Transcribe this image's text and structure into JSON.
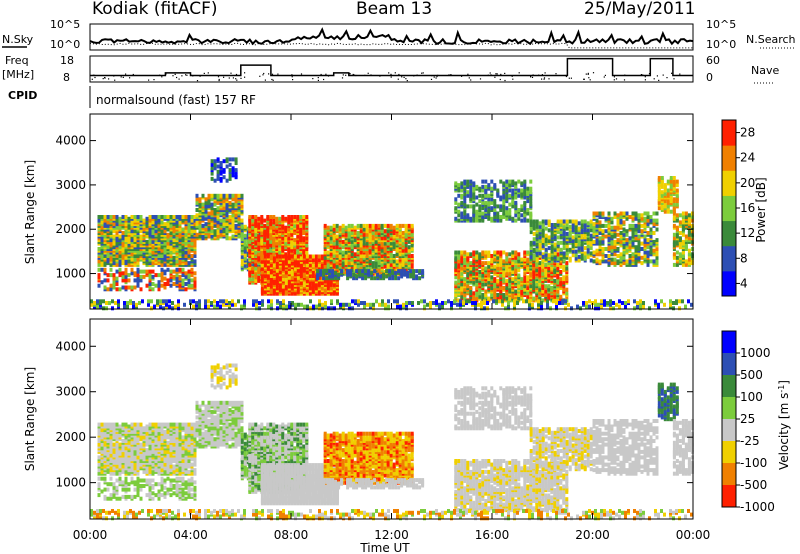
{
  "header": {
    "station": "Kodiak (fitACF)",
    "beam": "Beam 13",
    "date": "25/May/2011"
  },
  "noise_panel": {
    "left_label": "N.Sky",
    "right_label": "N.Search",
    "left_ticks": [
      "10^5",
      "10^0"
    ],
    "right_ticks": [
      "10^5",
      "10^0"
    ]
  },
  "freq_panel": {
    "left_label_line1": "Freq",
    "left_label_line2": "[MHz]",
    "right_label": "Nave",
    "left_ticks": [
      "18",
      "8"
    ],
    "right_ticks": [
      "60",
      "0"
    ]
  },
  "cpid": {
    "label": "CPID",
    "text": "normalsound (fast) 157 RF"
  },
  "colors": {
    "power_scale": [
      "#0000ff",
      "#2d4fb4",
      "#3a8a3a",
      "#7ccc3c",
      "#f0d000",
      "#f08000",
      "#ff2000"
    ],
    "velocity_scale": [
      "#0000ff",
      "#2d4fb4",
      "#3a8a3a",
      "#7ccc3c",
      "#c8c8c8",
      "#f0d000",
      "#f08000",
      "#ff2000"
    ],
    "ground_scatter": "#c8c8c8"
  },
  "chart_data": [
    {
      "type": "heatmap",
      "panel": "power",
      "ylabel": "Slant Range [km]",
      "xlabel": "",
      "yticks": [
        "1000",
        "2000",
        "3000",
        "4000"
      ],
      "ylim": [
        200,
        4600
      ],
      "xticks": [],
      "colorbar_label": "Power [dB]",
      "colorbar_ticks": [
        "4",
        "8",
        "12",
        "16",
        "20",
        "24",
        "28"
      ],
      "grid": false
    },
    {
      "type": "heatmap",
      "panel": "velocity",
      "ylabel": "Slant Range [km]",
      "xlabel": "Time UT",
      "yticks": [
        "1000",
        "2000",
        "3000",
        "4000"
      ],
      "ylim": [
        200,
        4600
      ],
      "xticks": [
        "00:00",
        "04:00",
        "08:00",
        "12:00",
        "16:00",
        "20:00",
        "00:00"
      ],
      "colorbar_label": "Velocity [m s",
      "colorbar_label_sup": "-1",
      "colorbar_label_end": "]",
      "colorbar_ticks": [
        "1000",
        "500",
        "100",
        "25",
        "-25",
        "-100",
        "-500",
        "-1000"
      ],
      "grid": false
    }
  ]
}
